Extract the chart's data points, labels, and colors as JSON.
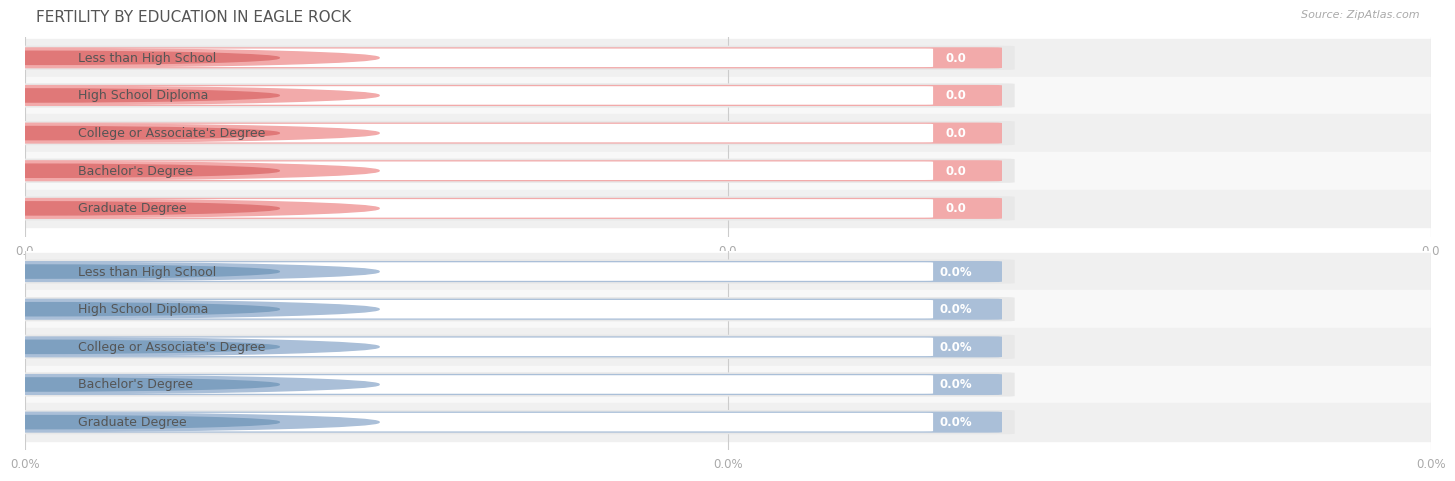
{
  "title": "FERTILITY BY EDUCATION IN EAGLE ROCK",
  "source": "Source: ZipAtlas.com",
  "categories": [
    "Less than High School",
    "High School Diploma",
    "College or Associate's Degree",
    "Bachelor's Degree",
    "Graduate Degree"
  ],
  "top_value_labels": [
    "0.0",
    "0.0",
    "0.0",
    "0.0",
    "0.0"
  ],
  "bottom_value_labels": [
    "0.0%",
    "0.0%",
    "0.0%",
    "0.0%",
    "0.0%"
  ],
  "top_bar_fill": "#F2AAAA",
  "top_circle": "#E07878",
  "top_white_pill": "#FFFFFF",
  "bottom_bar_fill": "#AABFD8",
  "bottom_circle": "#7EA0C0",
  "bottom_white_pill": "#FFFFFF",
  "row_bg_even": "#F0F0F0",
  "row_bg_odd": "#F8F8F8",
  "section_gap_bg": "#FFFFFF",
  "grid_color": "#CCCCCC",
  "title_color": "#555555",
  "source_color": "#AAAAAA",
  "tick_color": "#AAAAAA",
  "label_color": "#555555",
  "value_color": "#FFFFFF",
  "bg_color": "#FFFFFF",
  "top_xtick_labels": [
    "0.0",
    "0.0",
    "0.0"
  ],
  "bottom_xtick_labels": [
    "0.0%",
    "0.0%",
    "0.0%"
  ],
  "title_fs": 11,
  "label_fs": 9,
  "value_fs": 8.5,
  "tick_fs": 8.5,
  "source_fs": 8
}
